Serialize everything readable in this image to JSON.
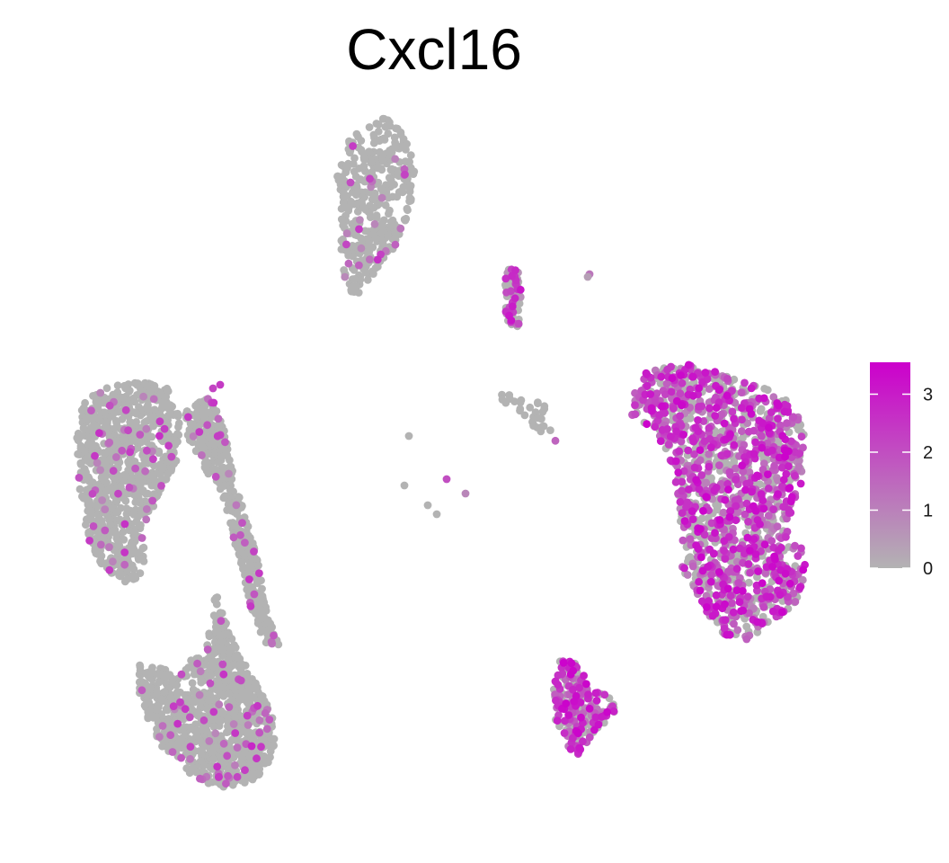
{
  "chart_data": {
    "type": "scatter",
    "title": "Cxcl16",
    "xlabel": "",
    "ylabel": "",
    "axes_visible": false,
    "grid": false,
    "legend": {
      "placement": "right",
      "title": "",
      "ticks": [
        0,
        1,
        2,
        3
      ],
      "tick_labels": [
        "0",
        "1",
        "2",
        "3"
      ],
      "range": [
        0,
        3.55
      ],
      "low_color": "#b3b3b3",
      "high_color": "#cc00cc"
    },
    "colors": {
      "low": "#b3b3b3",
      "high": "#cc00cc"
    },
    "clusters": [
      {
        "id": "top-center",
        "expression": "low",
        "mean_expression": 0.05,
        "points": 380
      },
      {
        "id": "left-upper",
        "expression": "low",
        "mean_expression": 0.25,
        "points": 900
      },
      {
        "id": "left-arc",
        "expression": "low",
        "mean_expression": 0.35,
        "points": 420
      },
      {
        "id": "bottom-left",
        "expression": "low",
        "mean_expression": 0.04,
        "points": 1000
      },
      {
        "id": "small-vertical",
        "expression": "mixed",
        "mean_expression": 1.1,
        "points": 70
      },
      {
        "id": "small-middle",
        "expression": "low",
        "mean_expression": 0.3,
        "points": 30
      },
      {
        "id": "scattered",
        "expression": "mixed",
        "mean_expression": 0.7,
        "points": 8
      },
      {
        "id": "right-large",
        "expression": "high",
        "mean_expression": 1.6,
        "points": 1500
      },
      {
        "id": "bottom-right",
        "expression": "high",
        "mean_expression": 2.1,
        "points": 220
      }
    ]
  }
}
